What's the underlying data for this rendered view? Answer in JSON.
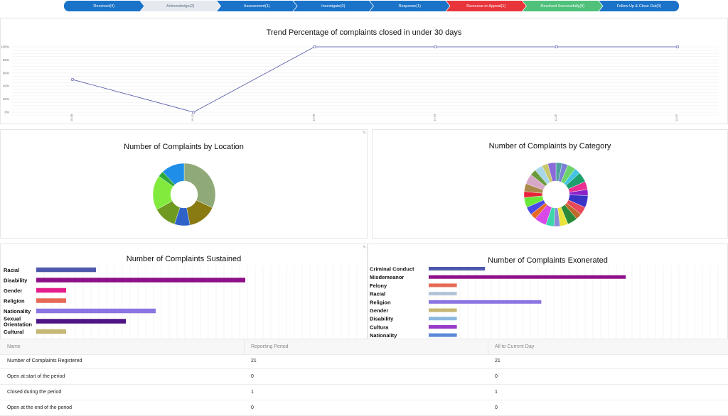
{
  "pipeline": [
    {
      "label": "Received(4)",
      "color": "#1a73c8",
      "text_color": "#ffffff"
    },
    {
      "label": "Acknowledge(2)",
      "color": "#e6eaf0",
      "text_color": "#5a6b80"
    },
    {
      "label": "Assessment(1)",
      "color": "#1a73c8",
      "text_color": "#ffffff"
    },
    {
      "label": "Investigate(0)",
      "color": "#1a73c8",
      "text_color": "#ffffff"
    },
    {
      "label": "Response(1)",
      "color": "#1a73c8",
      "text_color": "#ffffff"
    },
    {
      "label": "Recourse or Appeal(1)",
      "color": "#e8353b",
      "text_color": "#ffffff"
    },
    {
      "label": "Resolved Successfully(9)",
      "color": "#4fc17a",
      "text_color": "#ffffff"
    },
    {
      "label": "Follow Up & Close Out(0)",
      "color": "#1a73c8",
      "text_color": "#ffffff"
    }
  ],
  "chart_data": [
    {
      "type": "line",
      "title": "Trend Percentage of complaints closed in under 30 days",
      "x": [
        "10-08",
        "10-12",
        "11-08",
        "11-10",
        "11-15",
        "12-07"
      ],
      "values": [
        50,
        0,
        100,
        100,
        100,
        100
      ],
      "ylim": [
        0,
        100
      ],
      "yticks": [
        "0%",
        "20%",
        "40%",
        "60%",
        "80%",
        "100%"
      ],
      "color": "#4a4fa3",
      "grid": true
    },
    {
      "type": "pie",
      "title": "Number of Complaints by Location",
      "donut": true,
      "values": [
        32,
        15,
        8,
        12,
        18,
        3,
        12
      ],
      "colors": [
        "#8faa78",
        "#8a7a12",
        "#2f62c9",
        "#6f9a22",
        "#82ea3c",
        "#2ea838",
        "#1e8ee8"
      ]
    },
    {
      "type": "pie",
      "title": "Number of Complaints by Category",
      "donut": true,
      "values": [
        3,
        3,
        4,
        3,
        5,
        4,
        3,
        6,
        4,
        3,
        5,
        4,
        3,
        4,
        6,
        3,
        4,
        5,
        3,
        4,
        5,
        3,
        4,
        3,
        4
      ],
      "colors": [
        "#4fa1a1",
        "#7b7fd6",
        "#6dd46a",
        "#43c3e6",
        "#1ea06e",
        "#ec2e92",
        "#8a22c8",
        "#3a33c8",
        "#e84a5a",
        "#c06a2a",
        "#2a8a3a",
        "#e8e33a",
        "#8a8ad8",
        "#3ad8a8",
        "#d84ae8",
        "#e86a22",
        "#4a4ae8",
        "#6ae83a",
        "#e8223a",
        "#aa8a4a",
        "#d8a8c8",
        "#6a9a3a",
        "#a8d8e8",
        "#c8c868",
        "#8a6ad8"
      ]
    },
    {
      "type": "bar",
      "orientation": "horizontal",
      "title": "Number of Complaints Sustained",
      "categories": [
        "Racial",
        "Disability",
        "Gender",
        "Religion",
        "Nationality",
        "Sexual Orientation",
        "Cultural"
      ],
      "values": [
        3,
        10.5,
        1.5,
        1.5,
        6,
        4.5,
        1.5
      ],
      "colors": [
        "#4e58ad",
        "#8e1089",
        "#e31e8a",
        "#e66a55",
        "#8b75e2",
        "#4e1586",
        "#c6b874"
      ],
      "xlim": [
        0,
        35
      ]
    },
    {
      "type": "bar",
      "orientation": "horizontal",
      "title": "Number of Complaints Exonerated",
      "categories": [
        "Criminal Conduct",
        "Misdemeanor",
        "Felony",
        "Racial",
        "Religion",
        "Gender",
        "Disability",
        "Cultura",
        "Nationality"
      ],
      "values": [
        3,
        10.5,
        1.5,
        1.5,
        6,
        1.5,
        1.5,
        1.5,
        1.5
      ],
      "colors": [
        "#4e58ad",
        "#8e1089",
        "#e66a55",
        "#b3c4d8",
        "#8b75e2",
        "#c6b874",
        "#8ab8e0",
        "#9a3ac8",
        "#5a88d8"
      ],
      "xlim": [
        0,
        15
      ]
    }
  ],
  "table": {
    "headers": [
      "Name",
      "Reporting Period",
      "All to Current Day"
    ],
    "rows": [
      [
        "Number of Complaints Registered",
        "21",
        "21"
      ],
      [
        "Open at start of the period",
        "0",
        "0"
      ],
      [
        "Closed during the period",
        "1",
        "1"
      ],
      [
        "Open at the end of the period",
        "0",
        "0"
      ]
    ]
  }
}
